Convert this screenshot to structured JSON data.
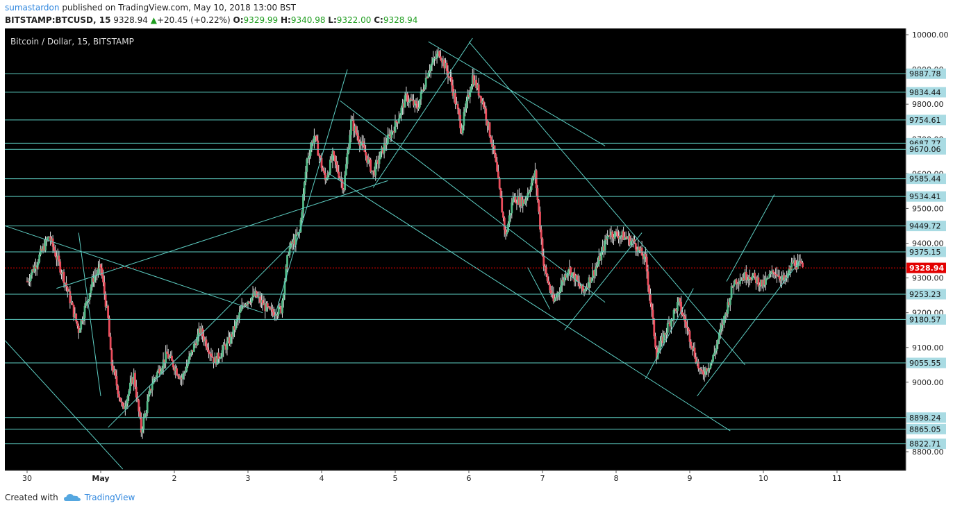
{
  "header": {
    "author": "sumastardon",
    "published_text": " published on TradingView.com, May 10, 2018 13:00 BST",
    "symbol": "BITSTAMP:BTCUSD, 15",
    "last": "9328.94",
    "change": "+20.45 (+0.22%)",
    "o_label": "O:",
    "o_value": "9329.99",
    "h_label": "H:",
    "h_value": "9340.98",
    "l_label": "L:",
    "l_value": "9322.00",
    "c_label": "C:",
    "c_value": "9328.94"
  },
  "footer": {
    "created_with": "Created with",
    "brand": "TradingView"
  },
  "colors": {
    "background": "#000000",
    "up": "#53b987",
    "down": "#eb4d5c",
    "line": "#5ecfc4",
    "label_bg": "#a9dbe3",
    "current": "#e30000",
    "wick": "#dddddd"
  },
  "chart_data": {
    "type": "candlestick",
    "title": "Bitcoin / Dollar, 15, BITSTAMP",
    "x_ticks": [
      "30",
      "May",
      "2",
      "3",
      "4",
      "5",
      "6",
      "7",
      "8",
      "9",
      "10",
      "11"
    ],
    "y_ticks": [
      "10000.00",
      "9900.00",
      "9800.00",
      "9700.00",
      "9600.00",
      "9500.00",
      "9400.00",
      "9300.00",
      "9200.00",
      "9100.00",
      "9000.00",
      "8900.00",
      "8800.00"
    ],
    "ylim": [
      8760,
      10010
    ],
    "horizontal_levels": [
      9887.78,
      9834.44,
      9754.61,
      9687.77,
      9670.06,
      9585.44,
      9534.41,
      9449.72,
      9375.15,
      9253.23,
      9180.57,
      9055.55,
      8898.24,
      8865.05,
      8822.71
    ],
    "current_price": 9328.94,
    "price_path": [
      [
        0.0,
        9290
      ],
      [
        0.3,
        9420
      ],
      [
        0.5,
        9300
      ],
      [
        0.7,
        9150
      ],
      [
        0.9,
        9300
      ],
      [
        1.0,
        9330
      ],
      [
        1.1,
        9180
      ],
      [
        1.14,
        9060
      ],
      [
        1.3,
        8920
      ],
      [
        1.45,
        9020
      ],
      [
        1.55,
        8860
      ],
      [
        1.7,
        9000
      ],
      [
        1.9,
        9080
      ],
      [
        2.1,
        9010
      ],
      [
        2.35,
        9150
      ],
      [
        2.55,
        9060
      ],
      [
        2.75,
        9120
      ],
      [
        2.95,
        9230
      ],
      [
        3.1,
        9250
      ],
      [
        3.3,
        9200
      ],
      [
        3.45,
        9210
      ],
      [
        3.55,
        9380
      ],
      [
        3.7,
        9430
      ],
      [
        3.8,
        9640
      ],
      [
        3.9,
        9710
      ],
      [
        4.05,
        9580
      ],
      [
        4.15,
        9650
      ],
      [
        4.3,
        9560
      ],
      [
        4.4,
        9750
      ],
      [
        4.55,
        9680
      ],
      [
        4.7,
        9600
      ],
      [
        4.85,
        9680
      ],
      [
        5.0,
        9740
      ],
      [
        5.15,
        9820
      ],
      [
        5.3,
        9790
      ],
      [
        5.45,
        9900
      ],
      [
        5.6,
        9950
      ],
      [
        5.75,
        9870
      ],
      [
        5.9,
        9730
      ],
      [
        6.05,
        9880
      ],
      [
        6.2,
        9800
      ],
      [
        6.35,
        9650
      ],
      [
        6.5,
        9420
      ],
      [
        6.6,
        9530
      ],
      [
        6.75,
        9520
      ],
      [
        6.9,
        9600
      ],
      [
        7.02,
        9330
      ],
      [
        7.15,
        9230
      ],
      [
        7.35,
        9330
      ],
      [
        7.55,
        9260
      ],
      [
        7.75,
        9340
      ],
      [
        7.9,
        9430
      ],
      [
        8.1,
        9420
      ],
      [
        8.25,
        9400
      ],
      [
        8.4,
        9350
      ],
      [
        8.55,
        9080
      ],
      [
        8.7,
        9160
      ],
      [
        8.85,
        9230
      ],
      [
        9.0,
        9130
      ],
      [
        9.15,
        9020
      ],
      [
        9.3,
        9060
      ],
      [
        9.45,
        9170
      ],
      [
        9.6,
        9290
      ],
      [
        9.8,
        9310
      ],
      [
        10.0,
        9280
      ],
      [
        10.15,
        9320
      ],
      [
        10.3,
        9290
      ],
      [
        10.4,
        9345
      ],
      [
        10.55,
        9329
      ]
    ],
    "trend_lines": [
      [
        [
          -0.3,
          9120
        ],
        [
          1.3,
          8750
        ]
      ],
      [
        [
          -0.3,
          9450
        ],
        [
          3.2,
          9200
        ]
      ],
      [
        [
          0.4,
          9270
        ],
        [
          4.9,
          9580
        ]
      ],
      [
        [
          0.7,
          9430
        ],
        [
          1.0,
          8960
        ]
      ],
      [
        [
          1.1,
          8870
        ],
        [
          3.6,
          9400
        ]
      ],
      [
        [
          3.35,
          9180
        ],
        [
          4.35,
          9900
        ]
      ],
      [
        [
          4.1,
          9600
        ],
        [
          9.55,
          8860
        ]
      ],
      [
        [
          4.25,
          9810
        ],
        [
          7.85,
          9230
        ]
      ],
      [
        [
          4.7,
          9560
        ],
        [
          6.05,
          9990
        ]
      ],
      [
        [
          5.45,
          9980
        ],
        [
          7.85,
          9680
        ]
      ],
      [
        [
          6.0,
          9980
        ],
        [
          9.75,
          9050
        ]
      ],
      [
        [
          6.8,
          9330
        ],
        [
          7.1,
          9210
        ]
      ],
      [
        [
          7.3,
          9150
        ],
        [
          8.35,
          9430
        ]
      ],
      [
        [
          8.4,
          9010
        ],
        [
          9.05,
          9270
        ]
      ],
      [
        [
          9.1,
          8960
        ],
        [
          10.5,
          9350
        ]
      ],
      [
        [
          9.5,
          9290
        ],
        [
          10.15,
          9540
        ]
      ]
    ],
    "grid": false,
    "legend": "none"
  }
}
